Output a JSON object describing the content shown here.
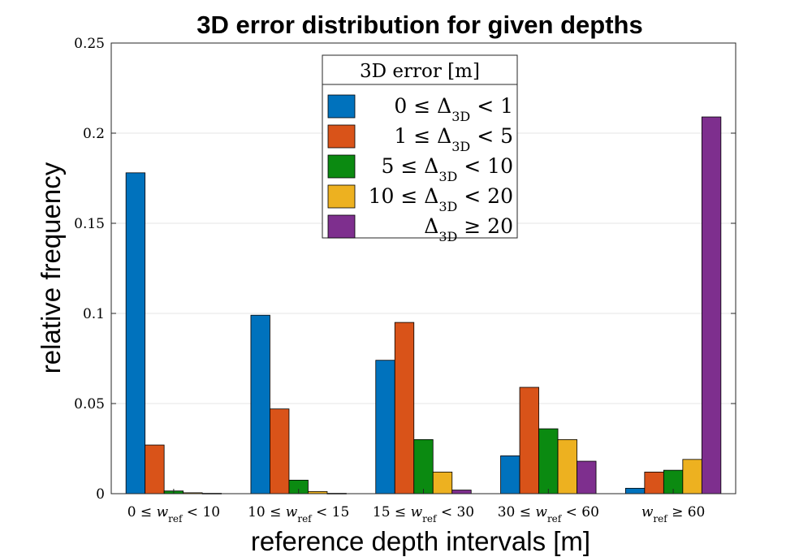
{
  "chart_data": {
    "type": "bar",
    "title": "3D error distribution for given depths",
    "xlabel": "reference depth intervals [m]",
    "ylabel": "relative frequency",
    "ylim": [
      0,
      0.25
    ],
    "yticks": [
      0,
      0.05,
      0.1,
      0.15,
      0.2,
      0.25
    ],
    "ytick_labels": [
      "0",
      "0.05",
      "0.1",
      "0.15",
      "0.2",
      "0.25"
    ],
    "grid": true,
    "categories": [
      "0 ≤ w_ref < 10",
      "10 ≤ w_ref < 15",
      "15 ≤ w_ref < 30",
      "30 ≤ w_ref < 60",
      "w_ref ≥ 60"
    ],
    "category_parts": [
      {
        "pre": "0 ≤ ",
        "sub": "ref",
        "post": " < 10"
      },
      {
        "pre": "10 ≤ ",
        "sub": "ref",
        "post": " < 15"
      },
      {
        "pre": "15 ≤ ",
        "sub": "ref",
        "post": " < 30"
      },
      {
        "pre": "30 ≤ ",
        "sub": "ref",
        "post": " < 60"
      },
      {
        "pre": "",
        "sub": "ref",
        "post": " ≥ 60"
      }
    ],
    "legend": {
      "title": "3D error [m]",
      "placement": "top-center",
      "entries": [
        {
          "pre": "0 ≤ ",
          "sub": "3D",
          "post": " < 1"
        },
        {
          "pre": "1 ≤ ",
          "sub": "3D",
          "post": " < 5"
        },
        {
          "pre": "5 ≤ ",
          "sub": "3D",
          "post": " < 10"
        },
        {
          "pre": "10 ≤ ",
          "sub": "3D",
          "post": " < 20"
        },
        {
          "pre": "",
          "sub": "3D",
          "post": " ≥ 20"
        }
      ]
    },
    "series": [
      {
        "name": "0 ≤ Δ3D < 1",
        "color": "#0072BD",
        "values": [
          0.178,
          0.099,
          0.074,
          0.021,
          0.003
        ]
      },
      {
        "name": "1 ≤ Δ3D < 5",
        "color": "#D95319",
        "values": [
          0.027,
          0.047,
          0.095,
          0.059,
          0.012
        ]
      },
      {
        "name": "5 ≤ Δ3D < 10",
        "color": "#0B8A11",
        "values": [
          0.0015,
          0.0075,
          0.03,
          0.036,
          0.013
        ]
      },
      {
        "name": "10 ≤ Δ3D < 20",
        "color": "#EDB120",
        "values": [
          0.0005,
          0.0012,
          0.012,
          0.03,
          0.019
        ]
      },
      {
        "name": "Δ3D ≥ 20",
        "color": "#7E2F8E",
        "values": [
          0.0002,
          0.0002,
          0.002,
          0.018,
          0.209
        ]
      }
    ]
  }
}
